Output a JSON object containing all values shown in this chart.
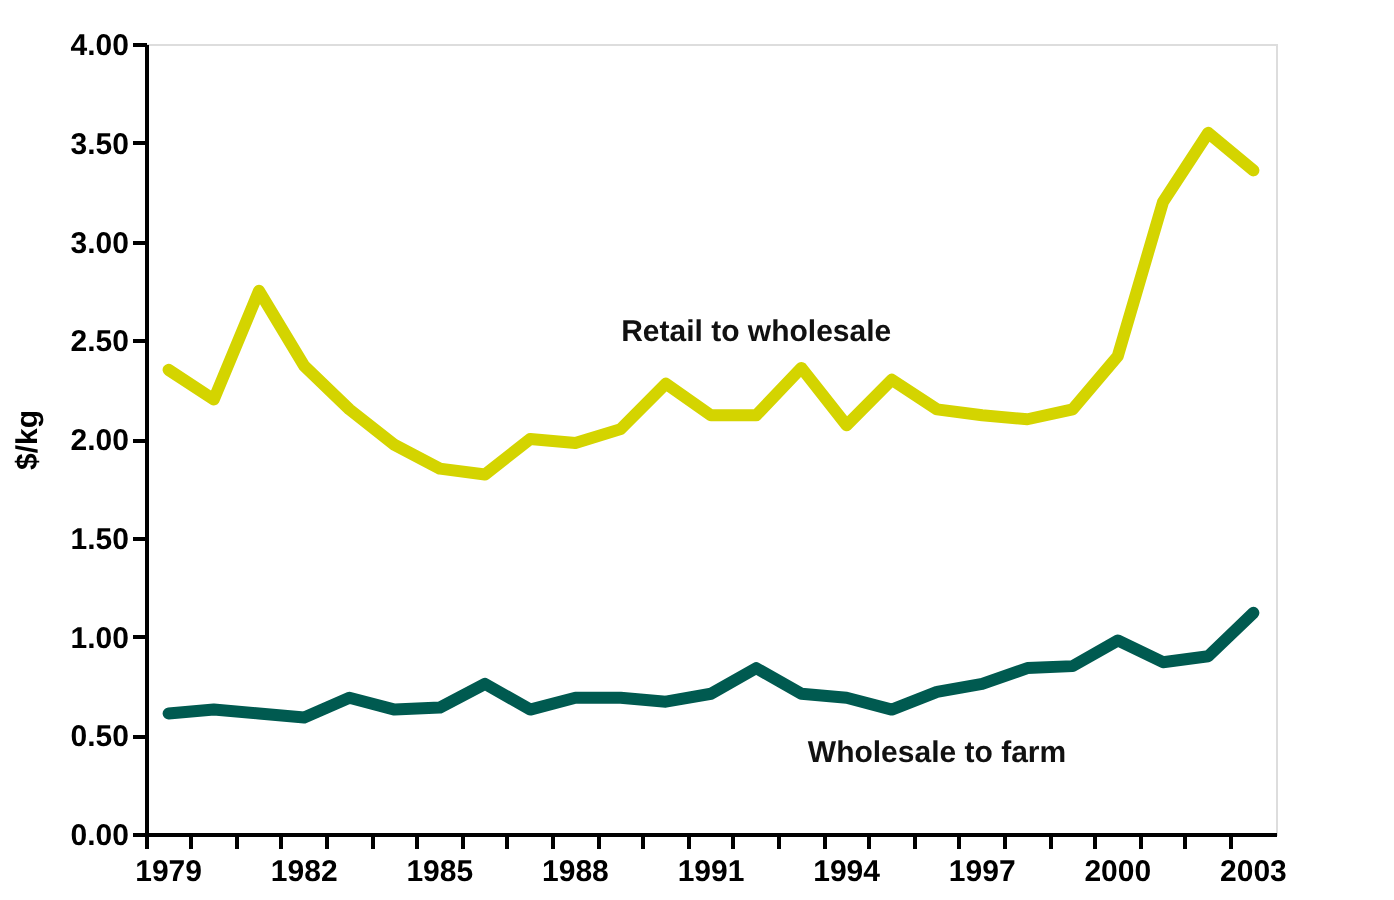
{
  "chart_data": {
    "type": "line",
    "ylabel": "$/kg",
    "categories": [
      "1979",
      null,
      null,
      "1982",
      null,
      null,
      "1985",
      null,
      null,
      "1988",
      null,
      null,
      "1991",
      null,
      null,
      "1994",
      null,
      null,
      "1997",
      null,
      null,
      "2000",
      null,
      null,
      "2003"
    ],
    "series": [
      {
        "name": "Retail to wholesale",
        "color": "#d4d400",
        "values": [
          2.35,
          2.2,
          2.75,
          2.37,
          2.15,
          1.97,
          1.85,
          1.82,
          2.0,
          1.98,
          2.05,
          2.28,
          2.12,
          2.12,
          2.36,
          2.07,
          2.3,
          2.15,
          2.12,
          2.1,
          2.15,
          2.42,
          3.2,
          3.55,
          3.36
        ]
      },
      {
        "name": "Wholesale to farm",
        "color": "#005a50",
        "values": [
          0.61,
          0.63,
          0.61,
          0.59,
          0.69,
          0.63,
          0.64,
          0.76,
          0.63,
          0.69,
          0.69,
          0.67,
          0.71,
          0.84,
          0.71,
          0.69,
          0.63,
          0.72,
          0.76,
          0.84,
          0.85,
          0.98,
          0.87,
          0.9,
          1.12
        ]
      }
    ],
    "ylim": [
      0,
      4
    ],
    "yticks": [
      {
        "value": 0,
        "label": "0.00"
      },
      {
        "value": 0.5,
        "label": "0.50"
      },
      {
        "value": 1,
        "label": "1.00"
      },
      {
        "value": 1.5,
        "label": "1.50"
      },
      {
        "value": 2,
        "label": "2.00"
      },
      {
        "value": 2.5,
        "label": "2.50"
      },
      {
        "value": 3,
        "label": "3.00"
      },
      {
        "value": 3.5,
        "label": "3.50"
      },
      {
        "value": 4,
        "label": "4.00"
      }
    ],
    "grid": false,
    "marker": "none",
    "line_style": "solid"
  }
}
